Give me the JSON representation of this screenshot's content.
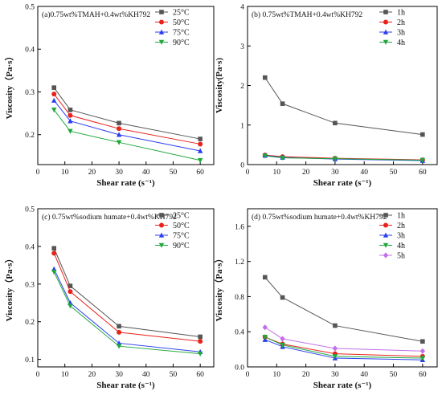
{
  "chart_data": [
    {
      "id": "a",
      "type": "line",
      "title": "(a)0.75wt%TMAH+0.4wt%KH792",
      "xlabel": "Shear rate (s⁻¹)",
      "ylabel": "Viscosity（Pa·s）",
      "xlim": [
        0,
        65
      ],
      "ylim": [
        0.13,
        0.5
      ],
      "xticks": [
        0,
        10,
        20,
        30,
        40,
        50,
        60
      ],
      "yticks": [
        0.2,
        0.3,
        0.4,
        0.5
      ],
      "legend_position": "top-right",
      "x": [
        6,
        12,
        30,
        60
      ],
      "series": [
        {
          "name": "25°C",
          "values": [
            0.31,
            0.258,
            0.227,
            0.19
          ],
          "color": "#555555",
          "marker": "square"
        },
        {
          "name": "50°C",
          "values": [
            0.295,
            0.245,
            0.214,
            0.178
          ],
          "color": "#e8231c",
          "marker": "circle"
        },
        {
          "name": "75°C",
          "values": [
            0.28,
            0.232,
            0.2,
            0.162
          ],
          "color": "#2a3ef0",
          "marker": "triangle-up"
        },
        {
          "name": "90°C",
          "values": [
            0.258,
            0.208,
            0.182,
            0.14
          ],
          "color": "#1fa83c",
          "marker": "triangle-down"
        }
      ]
    },
    {
      "id": "b",
      "type": "line",
      "title": "(b) 0.75wt%TMAH+0.4wt%KH792",
      "xlabel": "Shear rate (s⁻¹)",
      "ylabel": "Viscosity(Pa·s)",
      "xlim": [
        0,
        65
      ],
      "ylim": [
        0,
        4
      ],
      "xticks": [
        0,
        10,
        20,
        30,
        40,
        50,
        60
      ],
      "yticks": [
        0,
        1,
        2,
        3,
        4
      ],
      "legend_position": "top-right",
      "x": [
        6,
        12,
        30,
        60
      ],
      "series": [
        {
          "name": "1h",
          "values": [
            2.2,
            1.54,
            1.05,
            0.76
          ],
          "color": "#555555",
          "marker": "square"
        },
        {
          "name": "2h",
          "values": [
            0.24,
            0.2,
            0.16,
            0.12
          ],
          "color": "#e8231c",
          "marker": "circle"
        },
        {
          "name": "3h",
          "values": [
            0.23,
            0.18,
            0.14,
            0.1
          ],
          "color": "#2a3ef0",
          "marker": "triangle-up"
        },
        {
          "name": "4h",
          "values": [
            0.22,
            0.17,
            0.15,
            0.11
          ],
          "color": "#1fa83c",
          "marker": "triangle-down"
        }
      ]
    },
    {
      "id": "c",
      "type": "line",
      "title": "(c) 0.75wt%sodium humate+0.4wt%KH792",
      "xlabel": "Shear rate (s⁻¹)",
      "ylabel": "Viscosity（Pa·s）",
      "xlim": [
        0,
        65
      ],
      "ylim": [
        0.08,
        0.5
      ],
      "xticks": [
        0,
        10,
        20,
        30,
        40,
        50,
        60
      ],
      "yticks": [
        0.1,
        0.2,
        0.3,
        0.4,
        0.5
      ],
      "legend_position": "top-right",
      "x": [
        6,
        12,
        30,
        60
      ],
      "series": [
        {
          "name": "25°C",
          "values": [
            0.395,
            0.295,
            0.188,
            0.16
          ],
          "color": "#555555",
          "marker": "square"
        },
        {
          "name": "50°C",
          "values": [
            0.382,
            0.28,
            0.172,
            0.148
          ],
          "color": "#e8231c",
          "marker": "circle"
        },
        {
          "name": "75°C",
          "values": [
            0.34,
            0.25,
            0.143,
            0.12
          ],
          "color": "#2a3ef0",
          "marker": "triangle-up"
        },
        {
          "name": "90°C",
          "values": [
            0.332,
            0.242,
            0.135,
            0.115
          ],
          "color": "#1fa83c",
          "marker": "triangle-down"
        }
      ]
    },
    {
      "id": "d",
      "type": "line",
      "title": "(d) 0.75wt%sodium humate+0.4wt%KH792",
      "xlabel": "Shear rate (s⁻¹)",
      "ylabel": "Viscosity（Pa·s）",
      "xlim": [
        0,
        65
      ],
      "ylim": [
        0,
        1.8
      ],
      "xticks": [
        0,
        10,
        20,
        30,
        40,
        50,
        60
      ],
      "yticks": [
        0.0,
        0.4,
        0.8,
        1.2,
        1.6
      ],
      "legend_position": "top-right",
      "x": [
        6,
        12,
        30,
        60
      ],
      "series": [
        {
          "name": "1h",
          "values": [
            1.02,
            0.79,
            0.47,
            0.29
          ],
          "color": "#555555",
          "marker": "square"
        },
        {
          "name": "2h",
          "values": [
            0.34,
            0.26,
            0.15,
            0.12
          ],
          "color": "#e8231c",
          "marker": "circle"
        },
        {
          "name": "3h",
          "values": [
            0.31,
            0.23,
            0.1,
            0.08
          ],
          "color": "#2a3ef0",
          "marker": "triangle-up"
        },
        {
          "name": "4h",
          "values": [
            0.34,
            0.25,
            0.12,
            0.1
          ],
          "color": "#1fa83c",
          "marker": "triangle-down"
        },
        {
          "name": "5h",
          "values": [
            0.45,
            0.32,
            0.21,
            0.18
          ],
          "color": "#c070e8",
          "marker": "diamond"
        }
      ]
    }
  ]
}
